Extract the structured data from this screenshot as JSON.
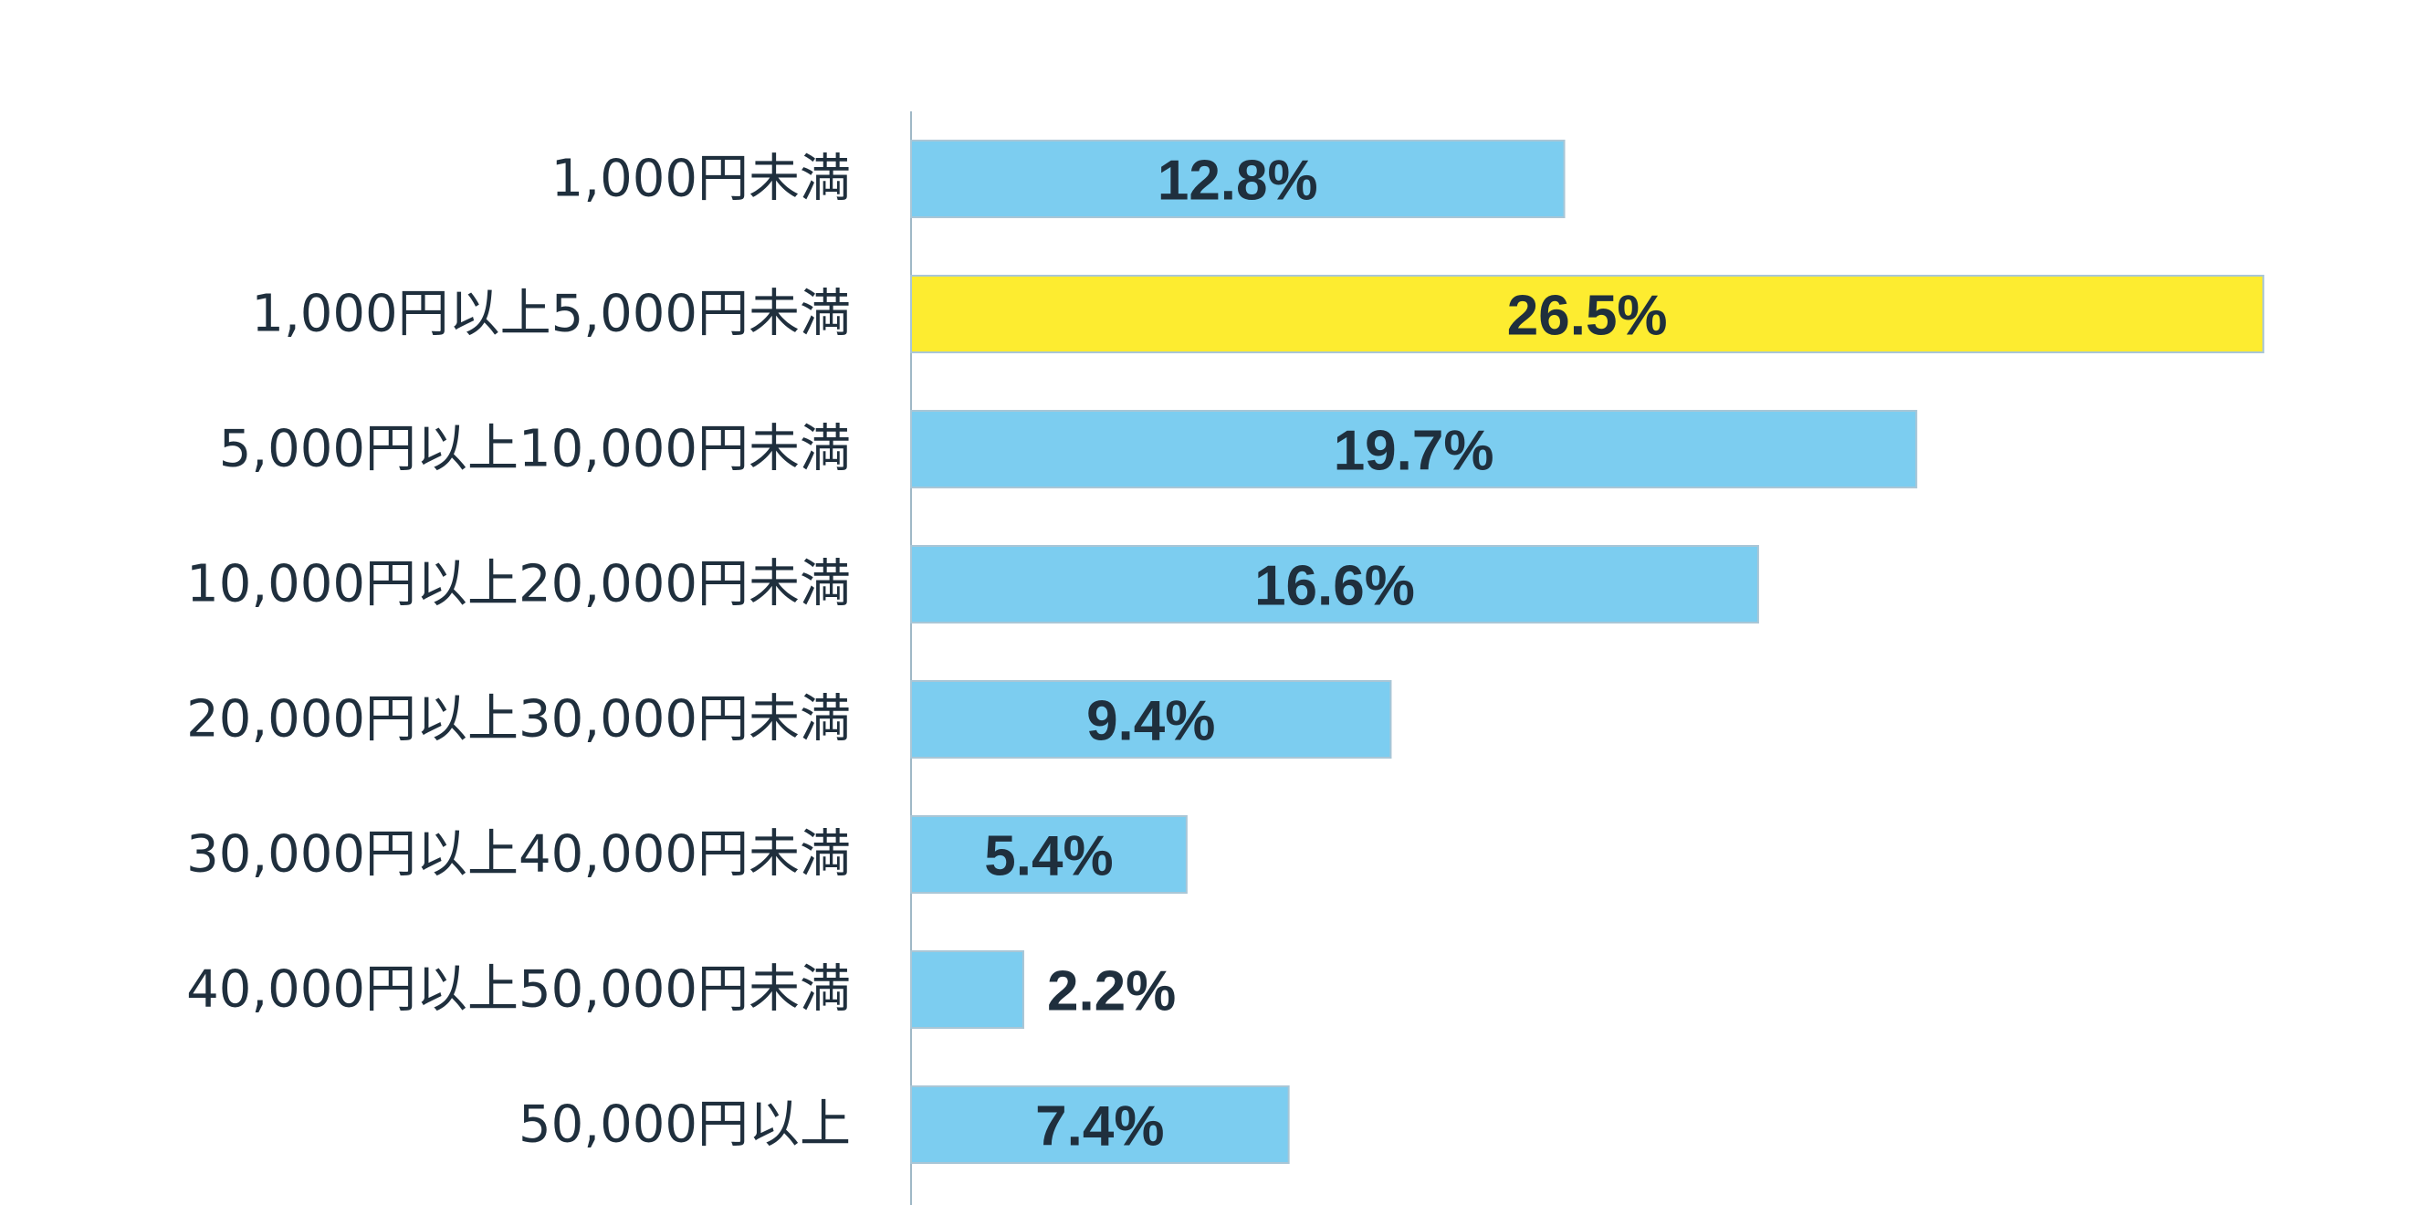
{
  "chart_data": {
    "type": "bar",
    "orientation": "horizontal",
    "title": "",
    "xlabel": "",
    "ylabel": "",
    "grid": false,
    "legend": "none",
    "xlim": [
      0,
      27
    ],
    "categories": [
      "1,000円未満",
      "1,000円以上5,000円未満",
      "5,000円以上10,000円未満",
      "10,000円以上20,000円未満",
      "20,000円以上30,000円未満",
      "30,000円以上40,000円未満",
      "40,000円以上50,000円未満",
      "50,000円以上"
    ],
    "values": [
      12.8,
      26.5,
      19.7,
      16.6,
      9.4,
      5.4,
      2.2,
      7.4
    ],
    "value_labels": [
      "12.8%",
      "26.5%",
      "19.7%",
      "16.6%",
      "9.4%",
      "5.4%",
      "2.2%",
      "7.4%"
    ],
    "highlight_index": 1,
    "colors": {
      "bar": "#7ccdf0",
      "highlight": "#fdec30",
      "bar_border": "#a9c6d6",
      "axis": "#9fb8c6",
      "text": "#1f2f3d"
    }
  }
}
